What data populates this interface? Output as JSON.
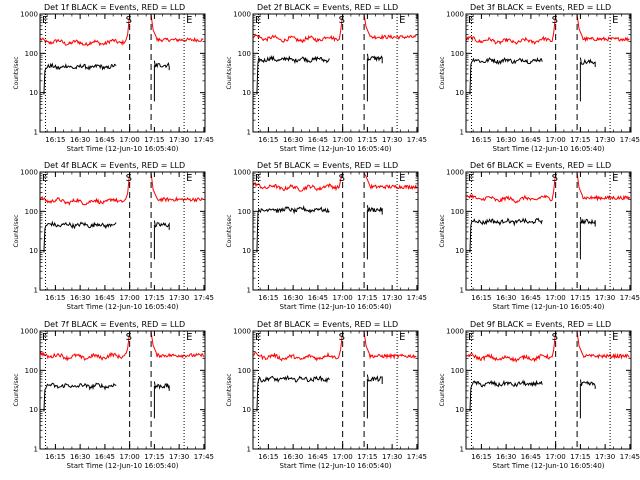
{
  "chart_data": [
    {
      "type": "line",
      "title": "Det 1f BLACK = Events, RED = LLD",
      "xlabel": "Start Time (12-Jun-10 16:05:40)",
      "ylabel": "Counts/sec",
      "yscale": "log",
      "ylim": [
        1,
        1000
      ],
      "xlim": [
        "16:05:40",
        "17:45:40"
      ],
      "x_ticks": [
        "16:15",
        "16:30",
        "16:45",
        "17:00",
        "17:15",
        "17:30",
        "17:45"
      ],
      "y_ticks": [
        "1",
        "10",
        "100",
        "1000"
      ],
      "markers": [
        {
          "label": "E",
          "time": "16:06"
        },
        {
          "label": "S",
          "time": "17:00"
        },
        {
          "label": "E",
          "time": "17:33"
        }
      ],
      "series": [
        {
          "color": "#ff0000",
          "segments": [
            {
              "start": "16:06",
              "end": "17:00",
              "level": 210
            },
            {
              "start": "17:13",
              "end": "17:45",
              "level": 220
            }
          ]
        },
        {
          "color": "#000000",
          "segments": [
            {
              "start": "16:08",
              "end": "16:52",
              "level": 45
            },
            {
              "start": "17:15",
              "end": "17:24",
              "level": 50
            }
          ]
        }
      ]
    },
    {
      "type": "line",
      "title": "Det 2f BLACK = Events, RED = LLD",
      "xlabel": "Start Time (12-Jun-10 16:05:40)",
      "ylabel": "Counts/sec",
      "yscale": "log",
      "ylim": [
        1,
        1000
      ],
      "xlim": [
        "16:05:40",
        "17:45:40"
      ],
      "x_ticks": [
        "16:15",
        "16:30",
        "16:45",
        "17:00",
        "17:15",
        "17:30",
        "17:45"
      ],
      "y_ticks": [
        "1",
        "10",
        "100",
        "1000"
      ],
      "markers": [
        {
          "label": "E",
          "time": "16:06"
        },
        {
          "label": "S",
          "time": "17:00"
        },
        {
          "label": "E",
          "time": "17:33"
        }
      ],
      "series": [
        {
          "color": "#ff0000",
          "segments": [
            {
              "start": "16:06",
              "end": "17:00",
              "level": 260
            },
            {
              "start": "17:13",
              "end": "17:45",
              "level": 260
            }
          ]
        },
        {
          "color": "#000000",
          "segments": [
            {
              "start": "16:08",
              "end": "16:52",
              "level": 70
            },
            {
              "start": "17:15",
              "end": "17:24",
              "level": 75
            }
          ]
        }
      ]
    },
    {
      "type": "line",
      "title": "Det 3f BLACK = Events, RED = LLD",
      "xlabel": "Start Time (12-Jun-10 16:05:40)",
      "ylabel": "Counts/sec",
      "yscale": "log",
      "ylim": [
        1,
        1000
      ],
      "xlim": [
        "16:05:40",
        "17:45:40"
      ],
      "x_ticks": [
        "16:15",
        "16:30",
        "16:45",
        "17:00",
        "17:15",
        "17:30",
        "17:45"
      ],
      "y_ticks": [
        "1",
        "10",
        "100",
        "1000"
      ],
      "markers": [
        {
          "label": "E",
          "time": "16:06"
        },
        {
          "label": "S",
          "time": "17:00"
        },
        {
          "label": "E",
          "time": "17:33"
        }
      ],
      "series": [
        {
          "color": "#ff0000",
          "segments": [
            {
              "start": "16:06",
              "end": "17:00",
              "level": 230
            },
            {
              "start": "17:13",
              "end": "17:45",
              "level": 230
            }
          ]
        },
        {
          "color": "#000000",
          "segments": [
            {
              "start": "16:08",
              "end": "16:52",
              "level": 65
            },
            {
              "start": "17:15",
              "end": "17:24",
              "level": 60
            }
          ]
        }
      ]
    },
    {
      "type": "line",
      "title": "Det 4f BLACK = Events, RED = LLD",
      "xlabel": "Start Time (12-Jun-10 16:05:40)",
      "ylabel": "Counts/sec",
      "yscale": "log",
      "ylim": [
        1,
        1000
      ],
      "xlim": [
        "16:05:40",
        "17:45:40"
      ],
      "x_ticks": [
        "16:15",
        "16:30",
        "16:45",
        "17:00",
        "17:15",
        "17:30",
        "17:45"
      ],
      "y_ticks": [
        "1",
        "10",
        "100",
        "1000"
      ],
      "markers": [
        {
          "label": "E",
          "time": "16:06"
        },
        {
          "label": "S",
          "time": "17:00"
        },
        {
          "label": "E",
          "time": "17:33"
        }
      ],
      "series": [
        {
          "color": "#ff0000",
          "segments": [
            {
              "start": "16:06",
              "end": "17:00",
              "level": 200
            },
            {
              "start": "17:13",
              "end": "17:45",
              "level": 200
            }
          ]
        },
        {
          "color": "#000000",
          "segments": [
            {
              "start": "16:08",
              "end": "16:52",
              "level": 45
            },
            {
              "start": "17:15",
              "end": "17:24",
              "level": 45
            }
          ]
        }
      ]
    },
    {
      "type": "line",
      "title": "Det 5f BLACK = Events, RED = LLD",
      "xlabel": "Start Time (12-Jun-10 16:05:40)",
      "ylabel": "Counts/sec",
      "yscale": "log",
      "ylim": [
        1,
        1000
      ],
      "xlim": [
        "16:05:40",
        "17:45:40"
      ],
      "x_ticks": [
        "16:15",
        "16:30",
        "16:45",
        "17:00",
        "17:15",
        "17:30",
        "17:45"
      ],
      "y_ticks": [
        "1",
        "10",
        "100",
        "1000"
      ],
      "markers": [
        {
          "label": "E",
          "time": "16:06"
        },
        {
          "label": "S",
          "time": "17:00"
        },
        {
          "label": "E",
          "time": "17:33"
        }
      ],
      "series": [
        {
          "color": "#ff0000",
          "segments": [
            {
              "start": "16:06",
              "end": "17:00",
              "level": 450
            },
            {
              "start": "17:13",
              "end": "17:45",
              "level": 420
            }
          ]
        },
        {
          "color": "#000000",
          "segments": [
            {
              "start": "16:08",
              "end": "16:52",
              "level": 110
            },
            {
              "start": "17:15",
              "end": "17:24",
              "level": 110
            }
          ]
        }
      ]
    },
    {
      "type": "line",
      "title": "Det 6f BLACK = Events, RED = LLD",
      "xlabel": "Start Time (12-Jun-10 16:05:40)",
      "ylabel": "Counts/sec",
      "yscale": "log",
      "ylim": [
        1,
        1000
      ],
      "xlim": [
        "16:05:40",
        "17:45:40"
      ],
      "x_ticks": [
        "16:15",
        "16:30",
        "16:45",
        "17:00",
        "17:15",
        "17:30",
        "17:45"
      ],
      "y_ticks": [
        "1",
        "10",
        "100",
        "1000"
      ],
      "markers": [
        {
          "label": "E",
          "time": "16:06"
        },
        {
          "label": "S",
          "time": "17:00"
        },
        {
          "label": "E",
          "time": "17:33"
        }
      ],
      "series": [
        {
          "color": "#ff0000",
          "segments": [
            {
              "start": "16:06",
              "end": "17:00",
              "level": 230
            },
            {
              "start": "17:13",
              "end": "17:45",
              "level": 220
            }
          ]
        },
        {
          "color": "#000000",
          "segments": [
            {
              "start": "16:08",
              "end": "16:52",
              "level": 55
            },
            {
              "start": "17:15",
              "end": "17:24",
              "level": 55
            }
          ]
        }
      ]
    },
    {
      "type": "line",
      "title": "Det 7f BLACK = Events, RED = LLD",
      "xlabel": "Start Time (12-Jun-10 16:05:40)",
      "ylabel": "Counts/sec",
      "yscale": "log",
      "ylim": [
        1,
        1000
      ],
      "xlim": [
        "16:05:40",
        "17:45:40"
      ],
      "x_ticks": [
        "16:15",
        "16:30",
        "16:45",
        "17:00",
        "17:15",
        "17:30",
        "17:45"
      ],
      "y_ticks": [
        "1",
        "10",
        "100",
        "1000"
      ],
      "markers": [
        {
          "label": "E",
          "time": "16:06"
        },
        {
          "label": "S",
          "time": "17:00"
        },
        {
          "label": "E",
          "time": "17:33"
        }
      ],
      "series": [
        {
          "color": "#ff0000",
          "segments": [
            {
              "start": "16:06",
              "end": "17:00",
              "level": 250
            },
            {
              "start": "17:13",
              "end": "17:45",
              "level": 240
            }
          ]
        },
        {
          "color": "#000000",
          "segments": [
            {
              "start": "16:08",
              "end": "16:52",
              "level": 40
            },
            {
              "start": "17:15",
              "end": "17:24",
              "level": 40
            }
          ]
        }
      ]
    },
    {
      "type": "line",
      "title": "Det 8f BLACK = Events, RED = LLD",
      "xlabel": "Start Time (12-Jun-10 16:05:40)",
      "ylabel": "Counts/sec",
      "yscale": "log",
      "ylim": [
        1,
        1000
      ],
      "xlim": [
        "16:05:40",
        "17:45:40"
      ],
      "x_ticks": [
        "16:15",
        "16:30",
        "16:45",
        "17:00",
        "17:15",
        "17:30",
        "17:45"
      ],
      "y_ticks": [
        "1",
        "10",
        "100",
        "1000"
      ],
      "markers": [
        {
          "label": "E",
          "time": "16:06"
        },
        {
          "label": "S",
          "time": "17:00"
        },
        {
          "label": "E",
          "time": "17:33"
        }
      ],
      "series": [
        {
          "color": "#ff0000",
          "segments": [
            {
              "start": "16:06",
              "end": "17:00",
              "level": 240
            },
            {
              "start": "17:13",
              "end": "17:45",
              "level": 230
            }
          ]
        },
        {
          "color": "#000000",
          "segments": [
            {
              "start": "16:08",
              "end": "16:52",
              "level": 60
            },
            {
              "start": "17:15",
              "end": "17:24",
              "level": 60
            }
          ]
        }
      ]
    },
    {
      "type": "line",
      "title": "Det 9f BLACK = Events, RED = LLD",
      "xlabel": "Start Time (12-Jun-10 16:05:40)",
      "ylabel": "Counts/sec",
      "yscale": "log",
      "ylim": [
        1,
        1000
      ],
      "xlim": [
        "16:05:40",
        "17:45:40"
      ],
      "x_ticks": [
        "16:15",
        "16:30",
        "16:45",
        "17:00",
        "17:15",
        "17:30",
        "17:45"
      ],
      "y_ticks": [
        "1",
        "10",
        "100",
        "1000"
      ],
      "markers": [
        {
          "label": "E",
          "time": "16:06"
        },
        {
          "label": "S",
          "time": "17:00"
        },
        {
          "label": "E",
          "time": "17:33"
        }
      ],
      "series": [
        {
          "color": "#ff0000",
          "segments": [
            {
              "start": "16:06",
              "end": "17:00",
              "level": 230
            },
            {
              "start": "17:13",
              "end": "17:45",
              "level": 230
            }
          ]
        },
        {
          "color": "#000000",
          "segments": [
            {
              "start": "16:08",
              "end": "16:52",
              "level": 45
            },
            {
              "start": "17:15",
              "end": "17:24",
              "level": 45
            }
          ]
        }
      ]
    }
  ]
}
